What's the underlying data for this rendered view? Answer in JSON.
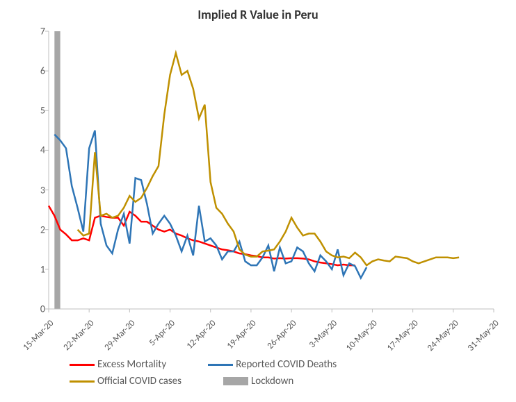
{
  "chart": {
    "type": "line",
    "title": "Implied R Value in Peru",
    "title_fontsize": 18,
    "background_color": "#ffffff",
    "axis_color": "#bfbfbf",
    "text_color": "#595959",
    "label_fontsize": 14,
    "ylim": [
      0,
      7
    ],
    "ytick_step": 1,
    "x_categories": [
      "15-Mar-20",
      "22-Mar-20",
      "29-Mar-20",
      "5-Apr-20",
      "12-Apr-20",
      "19-Apr-20",
      "26-Apr-20",
      "3-May-20",
      "10-May-20",
      "17-May-20",
      "24-May-20",
      "31-May-20"
    ],
    "x_count": 78,
    "lockdown": {
      "color": "#a6a6a6",
      "start_index": 1,
      "end_index": 2,
      "label": "Lockdown"
    },
    "series": [
      {
        "name": "Excess Mortality",
        "color": "#ff0000",
        "line_width": 2.5,
        "data": [
          [
            0,
            2.6
          ],
          [
            1,
            2.35
          ],
          [
            2,
            2.0
          ],
          [
            3,
            1.88
          ],
          [
            4,
            1.73
          ],
          [
            5,
            1.73
          ],
          [
            6,
            1.78
          ],
          [
            7,
            1.73
          ],
          [
            8,
            2.3
          ],
          [
            9,
            2.35
          ],
          [
            10,
            2.32
          ],
          [
            11,
            2.3
          ],
          [
            12,
            2.3
          ],
          [
            13,
            2.1
          ],
          [
            14,
            2.45
          ],
          [
            15,
            2.35
          ],
          [
            16,
            2.2
          ],
          [
            17,
            2.2
          ],
          [
            18,
            2.1
          ],
          [
            19,
            2.0
          ],
          [
            20,
            1.95
          ],
          [
            21,
            2.0
          ],
          [
            22,
            1.9
          ],
          [
            23,
            1.85
          ],
          [
            24,
            1.78
          ],
          [
            25,
            1.73
          ],
          [
            26,
            1.7
          ],
          [
            27,
            1.65
          ],
          [
            28,
            1.6
          ],
          [
            29,
            1.55
          ],
          [
            30,
            1.5
          ],
          [
            31,
            1.48
          ],
          [
            32,
            1.45
          ],
          [
            33,
            1.4
          ],
          [
            34,
            1.38
          ],
          [
            35,
            1.35
          ],
          [
            36,
            1.33
          ],
          [
            37,
            1.3
          ],
          [
            38,
            1.3
          ],
          [
            39,
            1.27
          ],
          [
            40,
            1.28
          ],
          [
            41,
            1.27
          ],
          [
            42,
            1.28
          ],
          [
            43,
            1.28
          ],
          [
            44,
            1.27
          ],
          [
            45,
            1.25
          ],
          [
            46,
            1.2
          ],
          [
            47,
            1.17
          ],
          [
            48,
            1.15
          ],
          [
            49,
            1.13
          ],
          [
            50,
            1.1
          ],
          [
            51,
            1.12
          ],
          [
            52,
            1.1
          ],
          [
            53,
            1.1
          ]
        ]
      },
      {
        "name": "Reported COVID Deaths",
        "color": "#2e75b6",
        "line_width": 2.5,
        "data": [
          [
            1,
            4.4
          ],
          [
            2,
            4.25
          ],
          [
            3,
            4.05
          ],
          [
            4,
            3.1
          ],
          [
            5,
            2.55
          ],
          [
            6,
            1.95
          ],
          [
            7,
            4.05
          ],
          [
            8,
            4.5
          ],
          [
            9,
            2.15
          ],
          [
            10,
            1.6
          ],
          [
            11,
            1.4
          ],
          [
            12,
            2.0
          ],
          [
            13,
            2.4
          ],
          [
            14,
            1.65
          ],
          [
            15,
            3.3
          ],
          [
            16,
            3.25
          ],
          [
            17,
            2.65
          ],
          [
            18,
            1.9
          ],
          [
            19,
            2.15
          ],
          [
            20,
            2.35
          ],
          [
            21,
            2.15
          ],
          [
            22,
            1.85
          ],
          [
            23,
            1.45
          ],
          [
            24,
            1.85
          ],
          [
            25,
            1.35
          ],
          [
            26,
            2.6
          ],
          [
            27,
            1.7
          ],
          [
            28,
            1.78
          ],
          [
            29,
            1.6
          ],
          [
            30,
            1.25
          ],
          [
            31,
            1.45
          ],
          [
            32,
            1.45
          ],
          [
            33,
            1.7
          ],
          [
            34,
            1.2
          ],
          [
            35,
            1.1
          ],
          [
            36,
            1.1
          ],
          [
            37,
            1.3
          ],
          [
            38,
            1.6
          ],
          [
            39,
            0.95
          ],
          [
            40,
            1.55
          ],
          [
            41,
            1.15
          ],
          [
            42,
            1.2
          ],
          [
            43,
            1.55
          ],
          [
            44,
            1.45
          ],
          [
            45,
            1.15
          ],
          [
            46,
            0.95
          ],
          [
            47,
            1.35
          ],
          [
            48,
            1.2
          ],
          [
            49,
            1.0
          ],
          [
            50,
            1.5
          ],
          [
            51,
            0.85
          ],
          [
            52,
            1.15
          ],
          [
            53,
            1.08
          ],
          [
            54,
            0.78
          ],
          [
            55,
            1.05
          ]
        ]
      },
      {
        "name": "Official COVID cases",
        "color": "#bf9000",
        "line_width": 2.5,
        "data": [
          [
            5,
            2.0
          ],
          [
            6,
            1.85
          ],
          [
            7,
            1.9
          ],
          [
            8,
            3.95
          ],
          [
            9,
            2.35
          ],
          [
            10,
            2.4
          ],
          [
            11,
            2.3
          ],
          [
            12,
            2.35
          ],
          [
            13,
            2.55
          ],
          [
            14,
            2.85
          ],
          [
            15,
            2.7
          ],
          [
            16,
            2.8
          ],
          [
            17,
            3.05
          ],
          [
            18,
            3.35
          ],
          [
            19,
            3.6
          ],
          [
            20,
            4.9
          ],
          [
            21,
            5.9
          ],
          [
            22,
            6.45
          ],
          [
            23,
            5.9
          ],
          [
            24,
            6.0
          ],
          [
            25,
            5.55
          ],
          [
            26,
            4.8
          ],
          [
            27,
            5.15
          ],
          [
            28,
            3.2
          ],
          [
            29,
            2.55
          ],
          [
            30,
            2.4
          ],
          [
            31,
            2.15
          ],
          [
            32,
            1.95
          ],
          [
            33,
            1.5
          ],
          [
            34,
            1.37
          ],
          [
            35,
            1.32
          ],
          [
            36,
            1.32
          ],
          [
            37,
            1.45
          ],
          [
            38,
            1.47
          ],
          [
            39,
            1.5
          ],
          [
            40,
            1.7
          ],
          [
            41,
            1.95
          ],
          [
            42,
            2.3
          ],
          [
            43,
            2.05
          ],
          [
            44,
            1.85
          ],
          [
            45,
            1.9
          ],
          [
            46,
            1.9
          ],
          [
            47,
            1.7
          ],
          [
            48,
            1.45
          ],
          [
            49,
            1.35
          ],
          [
            50,
            1.3
          ],
          [
            51,
            1.32
          ],
          [
            52,
            1.28
          ],
          [
            53,
            1.42
          ],
          [
            54,
            1.3
          ],
          [
            55,
            1.1
          ],
          [
            56,
            1.2
          ],
          [
            57,
            1.25
          ],
          [
            58,
            1.22
          ],
          [
            59,
            1.2
          ],
          [
            60,
            1.32
          ],
          [
            61,
            1.3
          ],
          [
            62,
            1.28
          ],
          [
            63,
            1.2
          ],
          [
            64,
            1.15
          ],
          [
            65,
            1.2
          ],
          [
            66,
            1.25
          ],
          [
            67,
            1.3
          ],
          [
            68,
            1.3
          ],
          [
            69,
            1.3
          ],
          [
            70,
            1.28
          ],
          [
            71,
            1.3
          ]
        ]
      }
    ],
    "legend": {
      "items": [
        {
          "label": "Excess Mortality",
          "series_ref": 0,
          "type": "line"
        },
        {
          "label": "Reported COVID Deaths",
          "series_ref": 1,
          "type": "line"
        },
        {
          "label": "Official COVID cases",
          "series_ref": 2,
          "type": "line"
        },
        {
          "label": "Lockdown",
          "type": "block"
        }
      ]
    }
  }
}
